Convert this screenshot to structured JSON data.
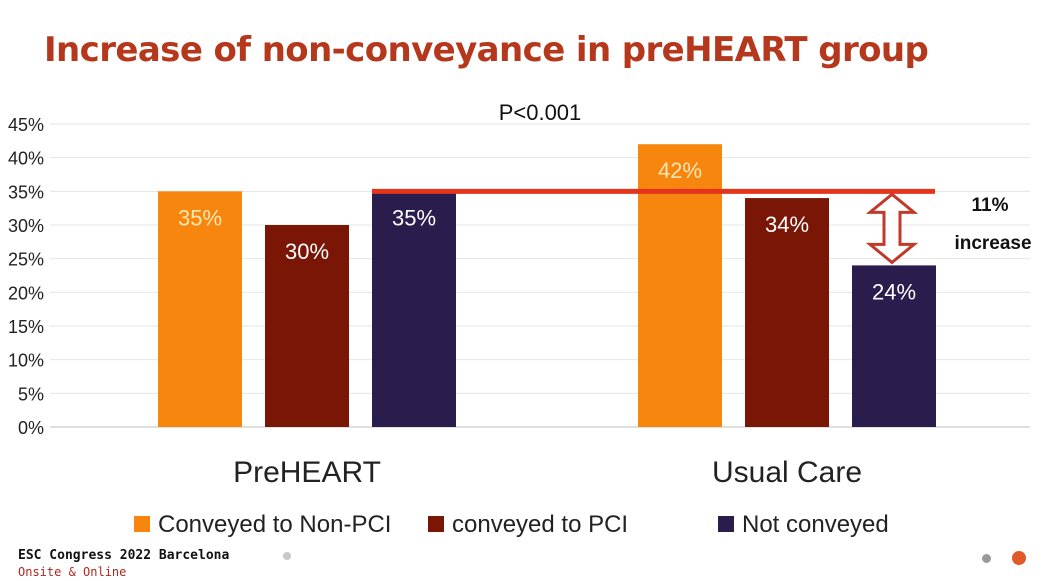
{
  "slide": {
    "title": "Increase of non-conveyance in preHEART group",
    "footer_event": "ESC Congress 2022 Barcelona",
    "footer_sub": "Onsite & Online"
  },
  "colors": {
    "title": "#b5371c",
    "orange": "#f7860f",
    "darkred": "#7a1606",
    "navy": "#2a1d4e",
    "line": "#e5341c",
    "arrow": "#c0392b"
  },
  "chart_data": {
    "type": "bar",
    "title": "Increase of non-conveyance in preHEART group",
    "categories": [
      "PreHEART",
      "Usual Care"
    ],
    "series": [
      {
        "name": "Conveyed to Non-PCI",
        "values": [
          35,
          42
        ],
        "labels": [
          "35%",
          "42%"
        ],
        "color": "#f7860f"
      },
      {
        "name": "conveyed to PCI",
        "values": [
          30,
          34
        ],
        "labels": [
          "30%",
          "34%"
        ],
        "color": "#7a1606"
      },
      {
        "name": "Not conveyed",
        "values": [
          35,
          24
        ],
        "labels": [
          "35%",
          "24%"
        ],
        "color": "#2a1d4e"
      }
    ],
    "ylim": [
      0,
      45
    ],
    "yticks": [
      "0%",
      "5%",
      "10%",
      "15%",
      "20%",
      "25%",
      "30%",
      "35%",
      "40%",
      "45%"
    ],
    "grid": true,
    "legend": "bottom",
    "annotations": {
      "pvalue": "P<0.001",
      "reference_line_value": 35,
      "increase_line1": "11%",
      "increase_line2": "increase"
    }
  }
}
